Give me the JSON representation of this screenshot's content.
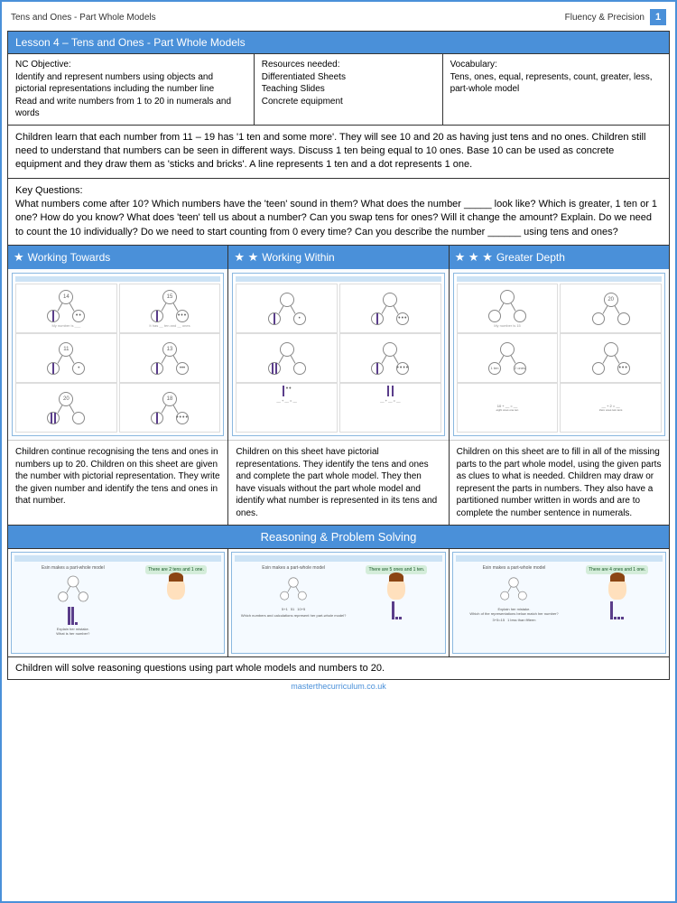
{
  "topbar": {
    "left": "Tens and Ones - Part Whole Models",
    "right": "Fluency & Precision",
    "page": "1"
  },
  "lesson_title": "Lesson 4 – Tens and Ones - Part Whole Models",
  "nc": {
    "label": "NC Objective:",
    "text": "Identify and represent numbers using objects and pictorial representations including the number line\nRead and write numbers from 1 to 20 in numerals and words"
  },
  "resources": {
    "label": "Resources needed:",
    "text": "Differentiated Sheets\nTeaching Slides\nConcrete equipment"
  },
  "vocab": {
    "label": "Vocabulary:",
    "text": "Tens, ones, equal, represents, count, greater, less, part-whole model"
  },
  "description": "Children learn that each number from 11 – 19 has '1 ten and some more'. They will see 10 and 20 as having just tens and no ones. Children still need to understand that numbers can be seen in different ways. Discuss 1 ten being equal to 10 ones. Base 10 can be used as concrete equipment and they draw them as 'sticks and    bricks'. A line represents 1 ten and a dot represents 1 one.",
  "key_q": {
    "label": "Key Questions:",
    "text": "What numbers come after 10? Which numbers have the 'teen' sound in them? What does the number _____ look like? Which is greater, 1 ten or 1 one? How do you know? What does 'teen' tell us about a number? Can you swap tens for ones? Will it change the amount? Explain. Do we need to count the 10 individually? Do we need to start counting from 0 every time? Can  you describe the number ______ using tens and ones?"
  },
  "levels": [
    {
      "stars": 1,
      "title": "Working Towards",
      "desc": "Children continue recognising the tens and ones in numbers up to 20. Children on this sheet are given the number with pictorial representation. They write the given number and identify the tens and ones in that number."
    },
    {
      "stars": 2,
      "title": "Working Within",
      "desc": "Children on this sheet have pictorial representations. They identify the tens and ones and complete the part whole model. They then have visuals without the part whole model and identify what number is represented in its tens and ones."
    },
    {
      "stars": 3,
      "title": "Greater Depth",
      "desc": "Children on this sheet are to fill in all of the missing parts to the part whole model, using the given parts as clues to what is needed. Children may draw or represent the parts in numbers. They also have a partitioned number written in words and are to complete the number sentence in numerals."
    }
  ],
  "rps_title": "Reasoning & Problem Solving",
  "rps_footer": "Children will solve reasoning questions using part whole models and numbers to 20.",
  "footer_link": "masterthecurriculum.co.uk",
  "colors": {
    "primary": "#4a90d9",
    "border": "#333",
    "stick": "#5a3d8a",
    "bubble": "#d4edda"
  },
  "thumb_nums": {
    "wt": [
      "14",
      "15",
      "11",
      "13",
      "20",
      "18"
    ],
    "ww_bubble": "There are 2 tens and 1 one.",
    "gd_bubble": "There are 4 ones and 1 one."
  }
}
